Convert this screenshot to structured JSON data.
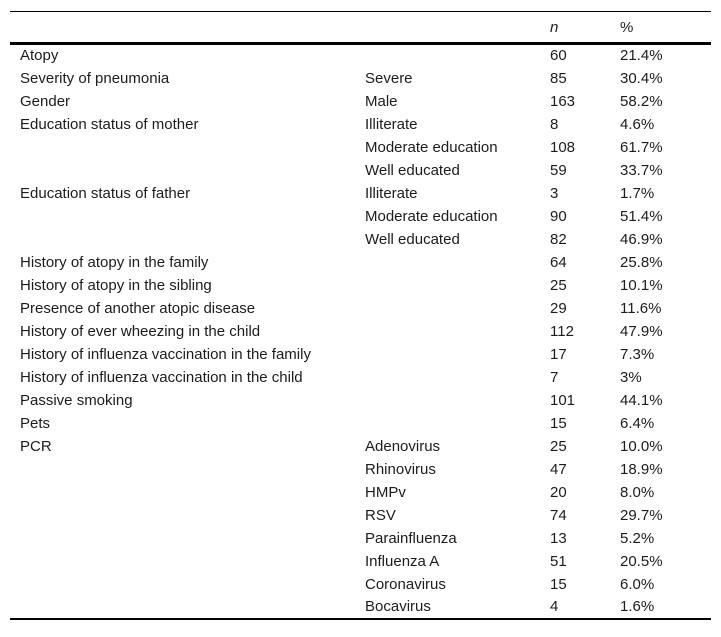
{
  "table": {
    "header": {
      "category": "",
      "subcategory": "",
      "n_label": "n",
      "pct_label": "%"
    },
    "rows": [
      {
        "category": "Atopy",
        "sub": "",
        "n": "60",
        "pct": "21.4%"
      },
      {
        "category": "Severity of pneumonia",
        "sub": "Severe",
        "n": "85",
        "pct": "30.4%"
      },
      {
        "category": "Gender",
        "sub": "Male",
        "n": "163",
        "pct": "58.2%"
      },
      {
        "category": "Education status of mother",
        "sub": "Illiterate",
        "n": "8",
        "pct": "4.6%"
      },
      {
        "category": "",
        "sub": "Moderate education",
        "n": "108",
        "pct": "61.7%"
      },
      {
        "category": "",
        "sub": "Well educated",
        "n": "59",
        "pct": "33.7%"
      },
      {
        "category": "Education status of father",
        "sub": "Illiterate",
        "n": "3",
        "pct": "1.7%"
      },
      {
        "category": "",
        "sub": "Moderate education",
        "n": "90",
        "pct": "51.4%"
      },
      {
        "category": "",
        "sub": "Well educated",
        "n": "82",
        "pct": "46.9%"
      },
      {
        "category": "History of atopy in the family",
        "sub": "",
        "n": "64",
        "pct": "25.8%"
      },
      {
        "category": "History of atopy in the sibling",
        "sub": "",
        "n": "25",
        "pct": "10.1%"
      },
      {
        "category": "Presence of another atopic disease",
        "sub": "",
        "n": "29",
        "pct": "11.6%"
      },
      {
        "category": "History of ever wheezing in the child",
        "sub": "",
        "n": "112",
        "pct": "47.9%"
      },
      {
        "category": "History of influenza vaccination in the family",
        "sub": "",
        "n": "17",
        "pct": "7.3%"
      },
      {
        "category": "History of influenza vaccination in the child",
        "sub": "",
        "n": "7",
        "pct": "3%"
      },
      {
        "category": "Passive smoking",
        "sub": "",
        "n": "101",
        "pct": "44.1%"
      },
      {
        "category": "Pets",
        "sub": "",
        "n": "15",
        "pct": "6.4%"
      },
      {
        "category": "PCR",
        "sub": "Adenovirus",
        "n": "25",
        "pct": "10.0%"
      },
      {
        "category": "",
        "sub": "Rhinovirus",
        "n": "47",
        "pct": "18.9%"
      },
      {
        "category": "",
        "sub": "HMPv",
        "n": "20",
        "pct": "8.0%"
      },
      {
        "category": "",
        "sub": "RSV",
        "n": "74",
        "pct": "29.7%"
      },
      {
        "category": "",
        "sub": "Parainfluenza",
        "n": "13",
        "pct": "5.2%"
      },
      {
        "category": "",
        "sub": "Influenza A",
        "n": "51",
        "pct": "20.5%"
      },
      {
        "category": "",
        "sub": "Coronavirus",
        "n": "15",
        "pct": "6.0%"
      },
      {
        "category": "",
        "sub": "Bocavirus",
        "n": "4",
        "pct": "1.6%"
      }
    ]
  }
}
